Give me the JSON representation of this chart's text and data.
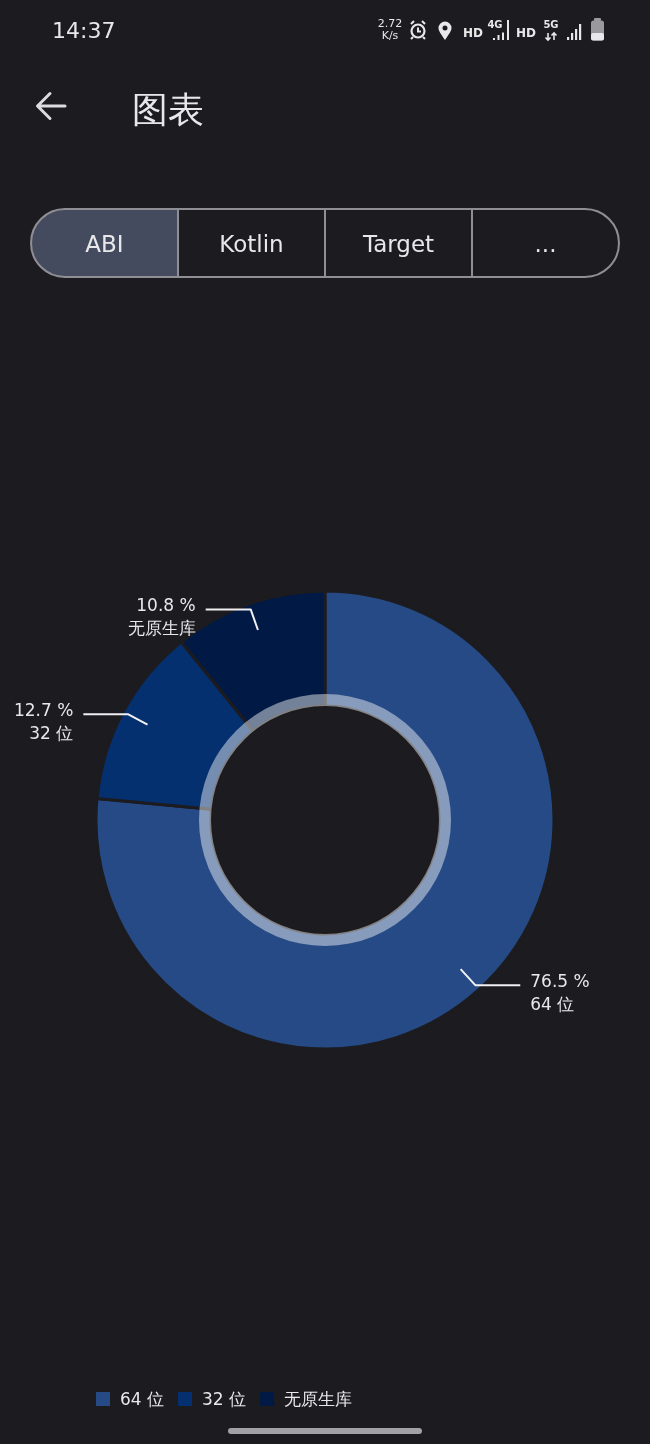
{
  "chart_data": {
    "type": "donut",
    "title": "图表",
    "categories": [
      "64 位",
      "32 位",
      "无原生库"
    ],
    "values": [
      76.5,
      12.7,
      10.8
    ],
    "colors": [
      "#254a85",
      "#053070",
      "#001a45"
    ],
    "value_labels": [
      "76.5 %",
      "12.7 %",
      "10.8 %"
    ],
    "legend": "bottom left",
    "annotations": [
      "14:37",
      "2.72",
      "K/s",
      "HD",
      "4G",
      "HD",
      "5G",
      "ABI",
      "Kotlin",
      "Target",
      "..."
    ]
  }
}
